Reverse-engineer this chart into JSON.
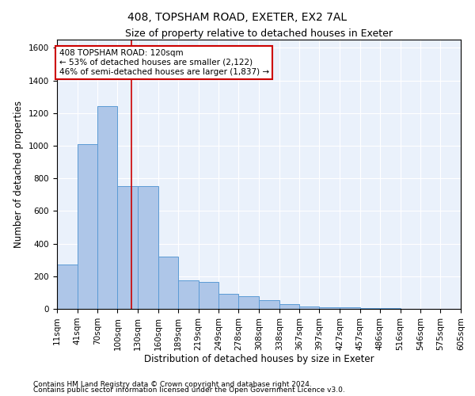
{
  "title": "408, TOPSHAM ROAD, EXETER, EX2 7AL",
  "subtitle": "Size of property relative to detached houses in Exeter",
  "xlabel": "Distribution of detached houses by size in Exeter",
  "ylabel": "Number of detached properties",
  "bar_color": "#aec6e8",
  "bar_edge_color": "#5b9bd5",
  "background_color": "#eaf1fb",
  "annotation_box_color": "#ffffff",
  "annotation_box_edge": "#cc0000",
  "vline_color": "#cc0000",
  "footer1": "Contains HM Land Registry data © Crown copyright and database right 2024.",
  "footer2": "Contains public sector information licensed under the Open Government Licence v3.0.",
  "annotation_line1": "408 TOPSHAM ROAD: 120sqm",
  "annotation_line2": "← 53% of detached houses are smaller (2,122)",
  "annotation_line3": "46% of semi-detached houses are larger (1,837) →",
  "property_size": 120,
  "bin_edges": [
    11,
    41,
    70,
    100,
    130,
    160,
    189,
    219,
    249,
    278,
    308,
    338,
    367,
    397,
    427,
    457,
    486,
    516,
    546,
    575,
    605
  ],
  "bin_counts": [
    270,
    1010,
    1240,
    750,
    750,
    320,
    175,
    165,
    90,
    80,
    55,
    30,
    15,
    10,
    10,
    5,
    5,
    2,
    2,
    0
  ],
  "ylim": [
    0,
    1650
  ],
  "yticks": [
    0,
    200,
    400,
    600,
    800,
    1000,
    1200,
    1400,
    1600
  ],
  "title_fontsize": 10,
  "subtitle_fontsize": 9,
  "tick_fontsize": 7.5,
  "axis_label_fontsize": 8.5,
  "footer_fontsize": 6.5
}
